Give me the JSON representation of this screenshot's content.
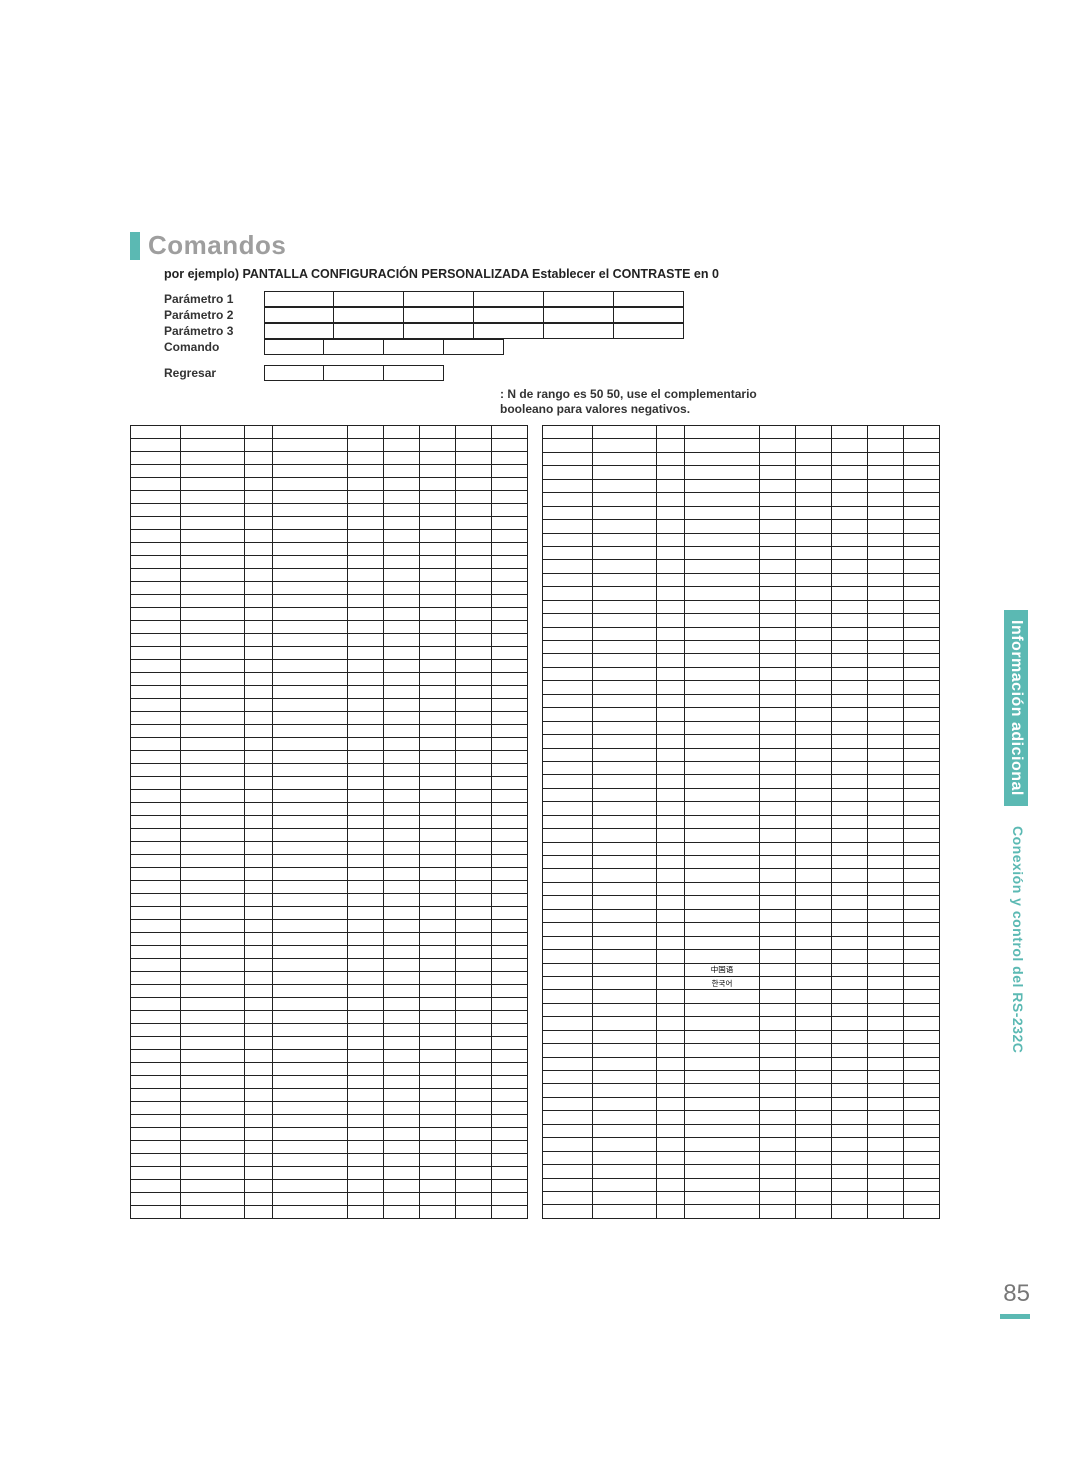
{
  "colors": {
    "accent": "#5bb9b3",
    "title_gray": "#9e9e9e",
    "text": "#333333",
    "border": "#222222",
    "background": "#ffffff"
  },
  "typography": {
    "title_fontsize": 26,
    "body_fontsize": 12,
    "table_fontsize": 7.5,
    "font_family": "Arial"
  },
  "title": "Comandos",
  "example_line": "por ejemplo) PANTALLA CONFIGURACIÓN PERSONALIZADA  Establecer el CONTRASTE en   0",
  "param_rows": [
    {
      "label": "Parámetro 1",
      "cells": [
        "",
        "",
        "",
        "",
        "",
        ""
      ]
    },
    {
      "label": "Parámetro 2",
      "cells": [
        "",
        "",
        "",
        "",
        "",
        ""
      ]
    },
    {
      "label": "Parámetro 3",
      "cells": [
        "",
        "",
        "",
        "",
        "",
        ""
      ]
    },
    {
      "label": "Comando",
      "cells": [
        "",
        "",
        "",
        ""
      ]
    },
    {
      "label": "Regresar",
      "cells": [
        "",
        "",
        ""
      ]
    }
  ],
  "note_line1": ": N de rango es 50    50, use el complementario",
  "note_line2": "booleano para valores negativos.",
  "side_tab1": "Información adicional",
  "side_tab2": "Conexión y control del RS-232C",
  "page_number": "85",
  "table_headers": [
    "",
    "",
    "",
    "",
    "",
    "",
    "",
    "",
    ""
  ],
  "left_table_rows": 60,
  "right_table_rows": 58,
  "table_column_widths": [
    50,
    64,
    28,
    76,
    36,
    36,
    36,
    36,
    36
  ],
  "sample_cjk": {
    "chinese": "中国语",
    "korean": "한국어"
  }
}
